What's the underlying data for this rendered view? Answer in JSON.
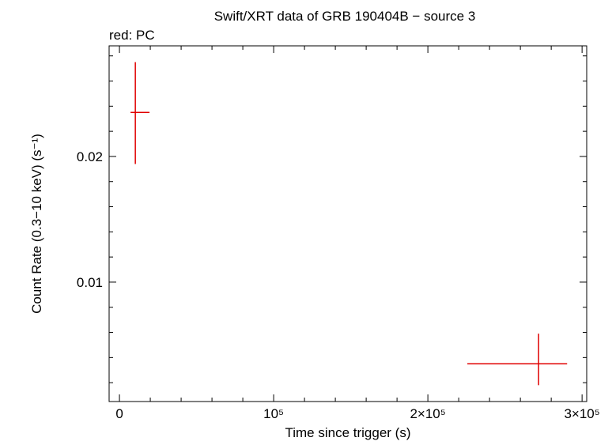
{
  "chart_data": {
    "type": "errorbar",
    "title": "Swift/XRT data of GRB 190404B − source 3",
    "subtitle": "red: PC",
    "x_label": "Time since trigger (s)",
    "y_label": "Count Rate (0.3−10 keV) (s⁻¹)",
    "xlim": [
      -6700,
      303000
    ],
    "ylim": [
      0.0005,
      0.0288
    ],
    "xticks": [
      0,
      {
        "value": 100000,
        "label": "10⁵"
      },
      {
        "value": 200000,
        "label": "2×10⁵"
      },
      {
        "value": 300000,
        "label": "3×10⁵"
      }
    ],
    "yticks": [
      0.01,
      0.02
    ],
    "xminorticks": [
      20000,
      40000,
      60000,
      80000,
      120000,
      140000,
      160000,
      180000,
      220000,
      240000,
      260000,
      280000
    ],
    "yminorticks": [
      0.002,
      0.004,
      0.006,
      0.008,
      0.012,
      0.014,
      0.016,
      0.018,
      0.022,
      0.024,
      0.026,
      0.028
    ],
    "series": [
      {
        "name": "PC",
        "color": "#e00000",
        "x": [
          10300,
          271800
        ],
        "xerr_low": [
          3100,
          46200
        ],
        "xerr_high": [
          9200,
          18500
        ],
        "values": [
          0.0235,
          0.0035
        ],
        "yerr_low": [
          0.0041,
          0.0017
        ],
        "yerr_high": [
          0.004,
          0.0024
        ]
      }
    ]
  }
}
